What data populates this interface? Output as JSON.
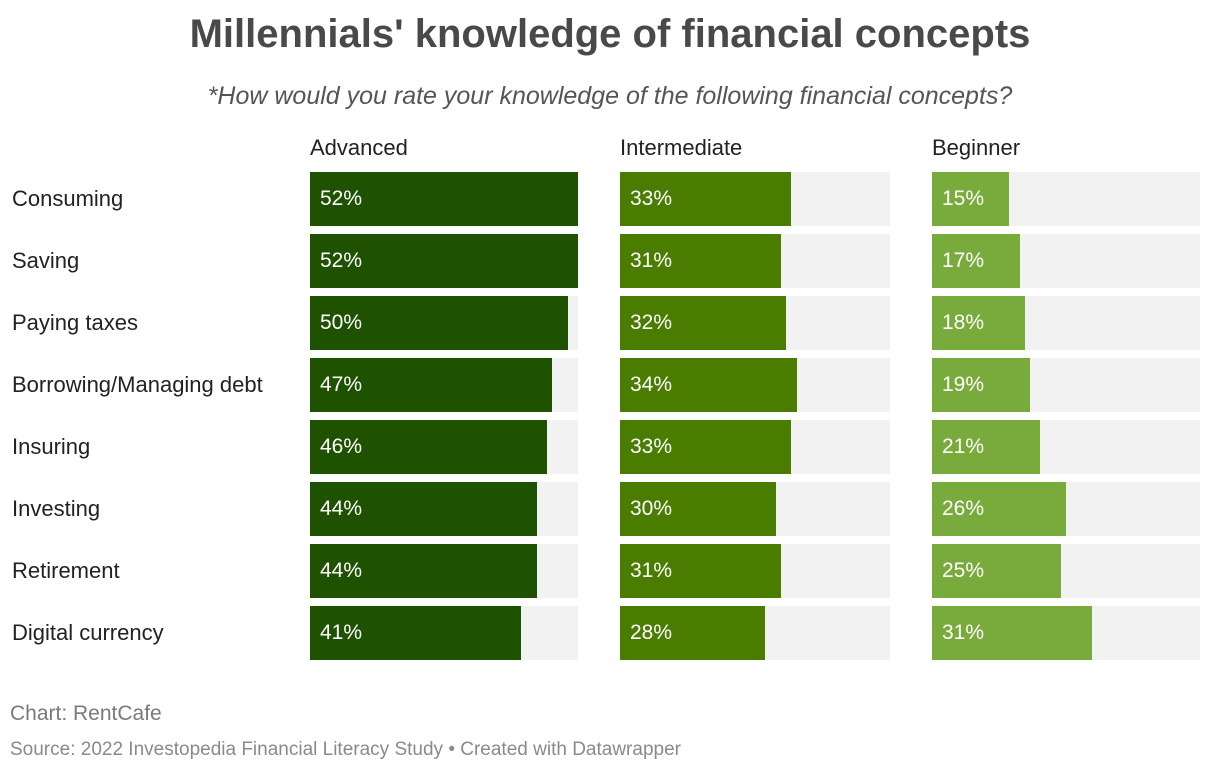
{
  "title": "Millennials' knowledge of financial concepts",
  "subtitle": "*How would you rate your knowledge of the following financial concepts?",
  "footer": {
    "chart_credit": "Chart: RentCafe",
    "source": "Source: 2022 Investopedia Financial Literacy Study • Created with Datawrapper"
  },
  "chart_data": {
    "type": "bar",
    "title": "Millennials' knowledge of financial concepts",
    "subtitle": "*How would you rate your knowledge of the following financial concepts?",
    "categories": [
      "Consuming",
      "Saving",
      "Paying taxes",
      "Borrowing/Managing debt",
      "Insuring",
      "Investing",
      "Retirement",
      "Digital currency"
    ],
    "series": [
      {
        "name": "Advanced",
        "color": "#1e5100",
        "values": [
          52,
          52,
          50,
          47,
          46,
          44,
          44,
          41
        ]
      },
      {
        "name": "Intermediate",
        "color": "#4a7c00",
        "values": [
          33,
          31,
          32,
          34,
          33,
          30,
          31,
          28
        ]
      },
      {
        "name": "Beginner",
        "color": "#78ab3b",
        "values": [
          15,
          17,
          18,
          19,
          21,
          26,
          25,
          31
        ]
      }
    ],
    "value_suffix": "%",
    "xlim": [
      0,
      52
    ],
    "track_color": "#f2f2f2"
  }
}
